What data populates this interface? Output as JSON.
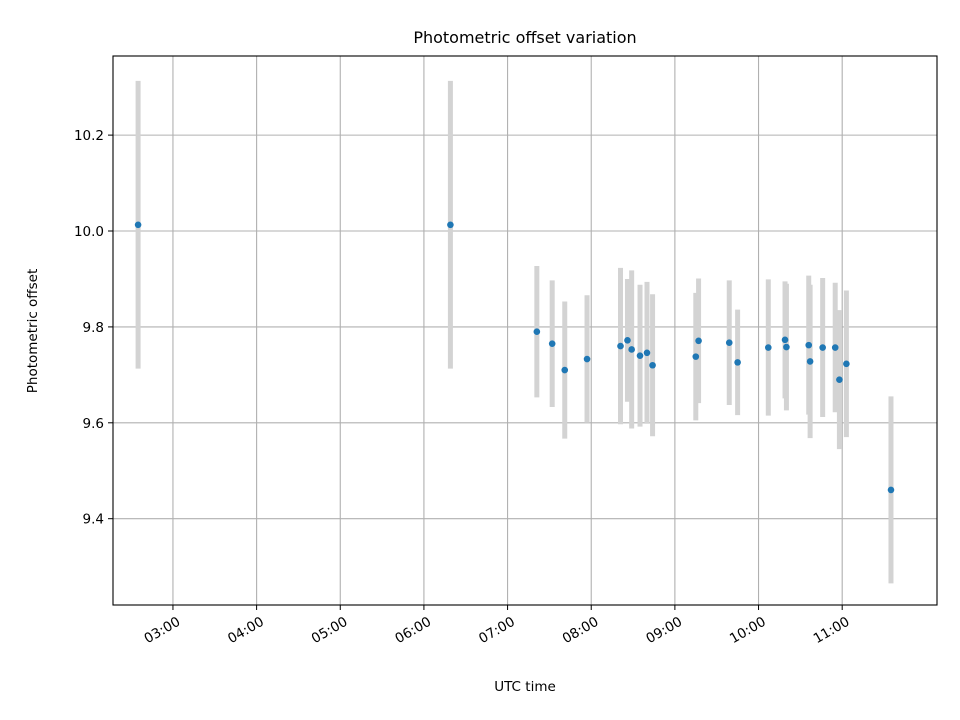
{
  "chart_data": {
    "type": "scatter",
    "title": "Photometric offset variation",
    "xlabel": "UTC time",
    "ylabel": "Photometric offset",
    "x_axis_type": "time",
    "xlim": [
      "02:17",
      "12:08"
    ],
    "ylim": [
      9.22,
      10.365
    ],
    "x_ticks": [
      "03:00",
      "04:00",
      "05:00",
      "06:00",
      "07:00",
      "08:00",
      "09:00",
      "10:00",
      "11:00"
    ],
    "y_ticks": [
      9.4,
      9.6,
      9.8,
      10.0,
      10.2
    ],
    "grid": true,
    "point_color": "#1f77b4",
    "errorbar_color": "#d3d3d3",
    "series": [
      {
        "points": [
          {
            "x": "02:35",
            "y": 10.013,
            "err": 0.3
          },
          {
            "x": "06:19",
            "y": 10.013,
            "err": 0.3
          },
          {
            "x": "07:21",
            "y": 9.79,
            "err": 0.137
          },
          {
            "x": "07:32",
            "y": 9.765,
            "err": 0.132
          },
          {
            "x": "07:41",
            "y": 9.71,
            "err": 0.143
          },
          {
            "x": "07:57",
            "y": 9.733,
            "err": 0.133
          },
          {
            "x": "08:21",
            "y": 9.76,
            "err": 0.163
          },
          {
            "x": "08:26",
            "y": 9.772,
            "err": 0.128
          },
          {
            "x": "08:29",
            "y": 9.753,
            "err": 0.165
          },
          {
            "x": "08:35",
            "y": 9.74,
            "err": 0.148
          },
          {
            "x": "08:40",
            "y": 9.746,
            "err": 0.148
          },
          {
            "x": "08:44",
            "y": 9.72,
            "err": 0.148
          },
          {
            "x": "09:15",
            "y": 9.738,
            "err": 0.133
          },
          {
            "x": "09:17",
            "y": 9.771,
            "err": 0.13
          },
          {
            "x": "09:39",
            "y": 9.767,
            "err": 0.13
          },
          {
            "x": "09:45",
            "y": 9.726,
            "err": 0.11
          },
          {
            "x": "10:07",
            "y": 9.757,
            "err": 0.142
          },
          {
            "x": "10:19",
            "y": 9.773,
            "err": 0.122
          },
          {
            "x": "10:20",
            "y": 9.758,
            "err": 0.132
          },
          {
            "x": "10:36",
            "y": 9.762,
            "err": 0.145
          },
          {
            "x": "10:37",
            "y": 9.728,
            "err": 0.16
          },
          {
            "x": "10:46",
            "y": 9.757,
            "err": 0.145
          },
          {
            "x": "10:55",
            "y": 9.757,
            "err": 0.135
          },
          {
            "x": "10:58",
            "y": 9.69,
            "err": 0.145
          },
          {
            "x": "11:03",
            "y": 9.723,
            "err": 0.153
          },
          {
            "x": "11:35",
            "y": 9.46,
            "err": 0.195
          }
        ]
      }
    ]
  }
}
